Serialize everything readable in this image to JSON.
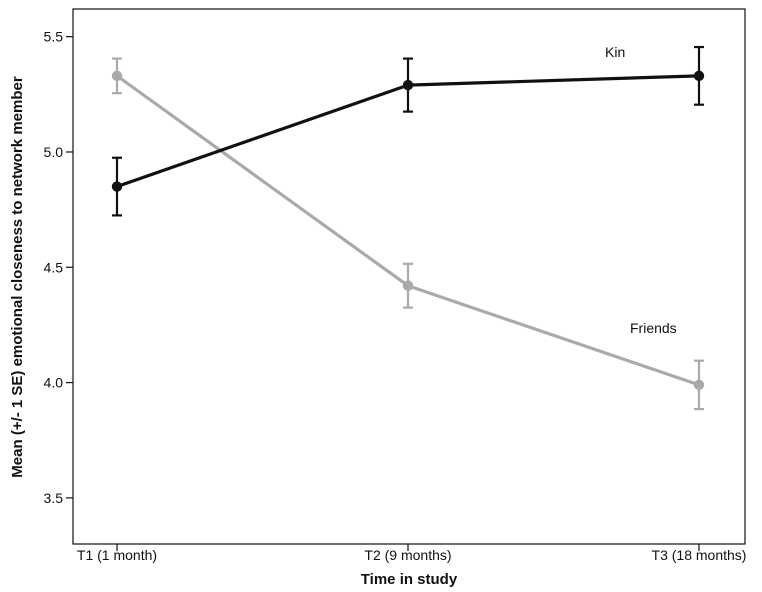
{
  "chart_data": {
    "type": "line",
    "title": "",
    "xlabel": "Time in study",
    "ylabel": "Mean (+/- 1 SE) emotional closeness to network member",
    "categories": [
      "T1 (1 month)",
      "T2 (9 months)",
      "T3 (18 months)"
    ],
    "ylim": [
      3.3,
      5.62
    ],
    "yticks": [
      "3.5",
      "4.0",
      "4.5",
      "5.0",
      "5.5"
    ],
    "grid": false,
    "legend": "inline labels",
    "series": [
      {
        "name": "Kin",
        "color": "#111111",
        "values": [
          4.85,
          5.29,
          5.33
        ],
        "se": [
          0.125,
          0.115,
          0.125
        ]
      },
      {
        "name": "Friends",
        "color": "#aaaaaa",
        "values": [
          5.33,
          4.42,
          3.99
        ],
        "se": [
          0.075,
          0.095,
          0.105
        ]
      }
    ]
  }
}
